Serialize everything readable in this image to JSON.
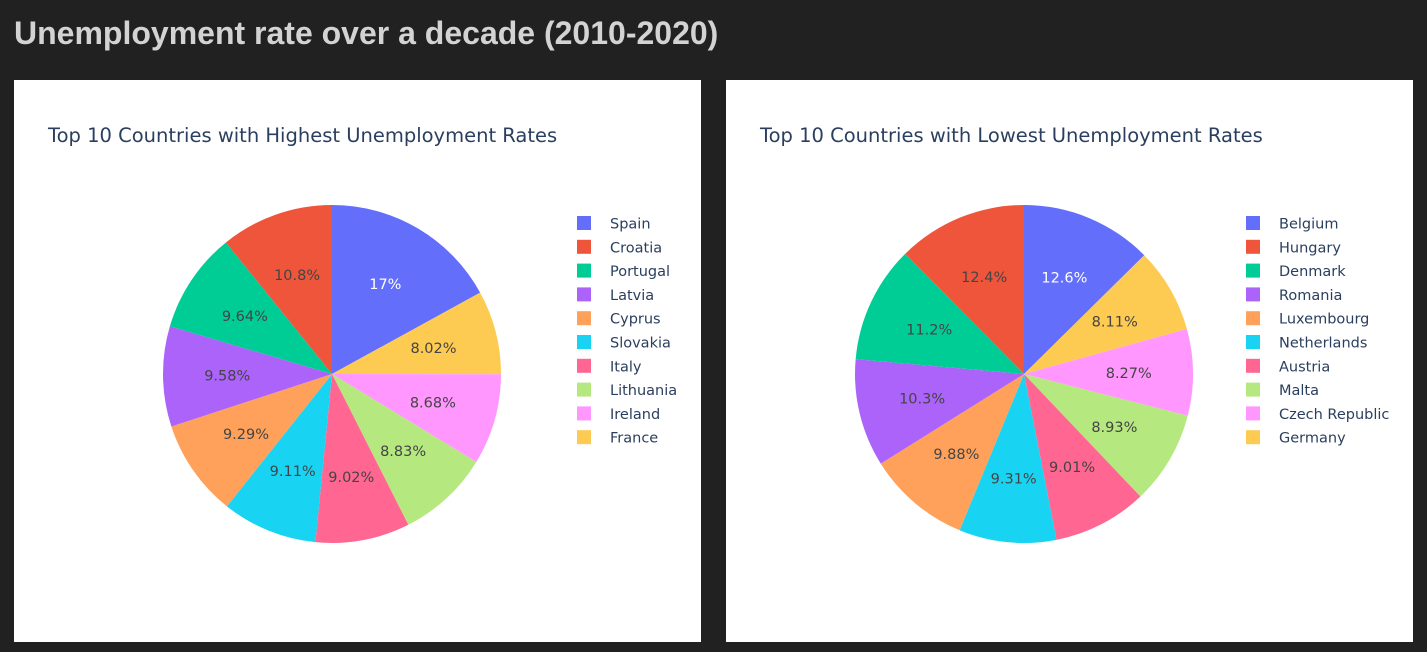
{
  "page": {
    "heading": "Unemployment rate over a decade (2010-2020)"
  },
  "chart_data": [
    {
      "type": "pie",
      "title": "Top 10 Countries with Highest Unemployment Rates",
      "legend_position": "right",
      "text_color": "#444444",
      "slices": [
        {
          "label": "Spain",
          "value": 17.0,
          "text": "17%",
          "color": "#636efa",
          "text_color": "#ffffff"
        },
        {
          "label": "France",
          "value": 8.02,
          "text": "8.02%",
          "color": "#fecb52"
        },
        {
          "label": "Ireland",
          "value": 8.68,
          "text": "8.68%",
          "color": "#ff97ff"
        },
        {
          "label": "Lithuania",
          "value": 8.83,
          "text": "8.83%",
          "color": "#b6e880"
        },
        {
          "label": "Italy",
          "value": 9.02,
          "text": "9.02%",
          "color": "#ff6692"
        },
        {
          "label": "Slovakia",
          "value": 9.11,
          "text": "9.11%",
          "color": "#19d3f3"
        },
        {
          "label": "Cyprus",
          "value": 9.29,
          "text": "9.29%",
          "color": "#ffa15a"
        },
        {
          "label": "Latvia",
          "value": 9.58,
          "text": "9.58%",
          "color": "#ab63fa"
        },
        {
          "label": "Portugal",
          "value": 9.64,
          "text": "9.64%",
          "color": "#00cc96"
        },
        {
          "label": "Croatia",
          "value": 10.8,
          "text": "10.8%",
          "color": "#ef553b"
        }
      ],
      "legend": [
        {
          "label": "Spain",
          "color": "#636efa"
        },
        {
          "label": "Croatia",
          "color": "#ef553b"
        },
        {
          "label": "Portugal",
          "color": "#00cc96"
        },
        {
          "label": "Latvia",
          "color": "#ab63fa"
        },
        {
          "label": "Cyprus",
          "color": "#ffa15a"
        },
        {
          "label": "Slovakia",
          "color": "#19d3f3"
        },
        {
          "label": "Italy",
          "color": "#ff6692"
        },
        {
          "label": "Lithuania",
          "color": "#b6e880"
        },
        {
          "label": "Ireland",
          "color": "#ff97ff"
        },
        {
          "label": "France",
          "color": "#fecb52"
        }
      ]
    },
    {
      "type": "pie",
      "title": "Top 10 Countries with Lowest Unemployment Rates",
      "legend_position": "right",
      "text_color": "#444444",
      "slices": [
        {
          "label": "Belgium",
          "value": 12.6,
          "text": "12.6%",
          "color": "#636efa",
          "text_color": "#ffffff"
        },
        {
          "label": "Germany",
          "value": 8.11,
          "text": "8.11%",
          "color": "#fecb52"
        },
        {
          "label": "Czech Republic",
          "value": 8.27,
          "text": "8.27%",
          "color": "#ff97ff"
        },
        {
          "label": "Malta",
          "value": 8.93,
          "text": "8.93%",
          "color": "#b6e880"
        },
        {
          "label": "Austria",
          "value": 9.01,
          "text": "9.01%",
          "color": "#ff6692"
        },
        {
          "label": "Netherlands",
          "value": 9.31,
          "text": "9.31%",
          "color": "#19d3f3"
        },
        {
          "label": "Luxembourg",
          "value": 9.88,
          "text": "9.88%",
          "color": "#ffa15a"
        },
        {
          "label": "Romania",
          "value": 10.3,
          "text": "10.3%",
          "color": "#ab63fa"
        },
        {
          "label": "Denmark",
          "value": 11.2,
          "text": "11.2%",
          "color": "#00cc96"
        },
        {
          "label": "Hungary",
          "value": 12.4,
          "text": "12.4%",
          "color": "#ef553b"
        }
      ],
      "legend": [
        {
          "label": "Belgium",
          "color": "#636efa"
        },
        {
          "label": "Hungary",
          "color": "#ef553b"
        },
        {
          "label": "Denmark",
          "color": "#00cc96"
        },
        {
          "label": "Romania",
          "color": "#ab63fa"
        },
        {
          "label": "Luxembourg",
          "color": "#ffa15a"
        },
        {
          "label": "Netherlands",
          "color": "#19d3f3"
        },
        {
          "label": "Austria",
          "color": "#ff6692"
        },
        {
          "label": "Malta",
          "color": "#b6e880"
        },
        {
          "label": "Czech Republic",
          "color": "#ff97ff"
        },
        {
          "label": "Germany",
          "color": "#fecb52"
        }
      ]
    }
  ]
}
